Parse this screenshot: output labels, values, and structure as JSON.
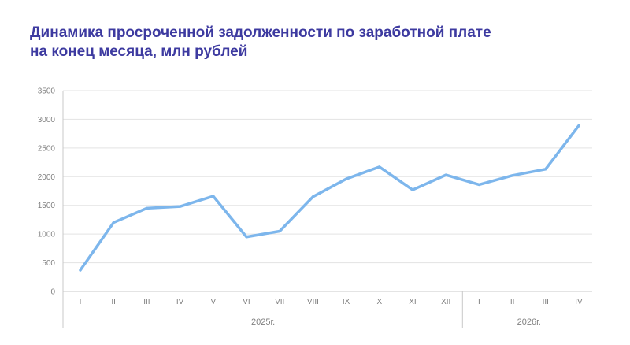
{
  "title": {
    "line1": "Динамика просроченной задолженности по заработной плате",
    "line2": "на конец месяца, млн рублей"
  },
  "chart_data": {
    "type": "line",
    "title": "Динамика просроченной задолженности по заработной плате на конец месяца, млн рублей",
    "categories": [
      "I",
      "II",
      "III",
      "IV",
      "V",
      "VI",
      "VII",
      "VIII",
      "IX",
      "X",
      "XI",
      "XII",
      "I",
      "II",
      "III",
      "IV"
    ],
    "groups": [
      {
        "label": "2025г.",
        "count": 12
      },
      {
        "label": "2026г.",
        "count": 4
      }
    ],
    "series": [
      {
        "values": [
          370,
          1200,
          1450,
          1480,
          1660,
          950,
          1050,
          1650,
          1960,
          2170,
          1770,
          2030,
          1860,
          2020,
          2130,
          2890
        ]
      }
    ],
    "ylim": [
      0,
      3500
    ],
    "yticks": [
      0,
      500,
      1000,
      1500,
      2000,
      2500,
      3000,
      3500
    ],
    "grid": true,
    "xlabel": "",
    "ylabel": "",
    "line_color": "#7db6ec",
    "grid_color": "#e3e3e3",
    "axis_color": "#c8c8c8",
    "title_color": "#3d3aa0"
  }
}
